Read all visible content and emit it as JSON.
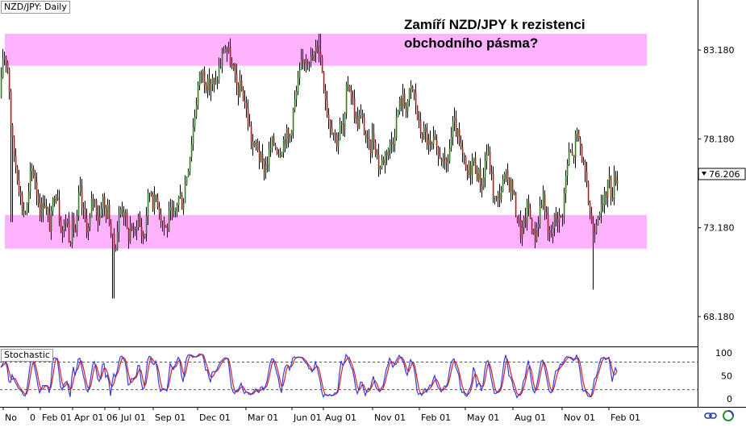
{
  "symbol_label": "NZD/JPY: Daily",
  "headline": "Zamíří NZD/JPY k rezistenci obchodního pásma?",
  "indicator_label": "Stochastic",
  "current_price": "76.206",
  "colors": {
    "bull_candle": "#1a8a1a",
    "bear_candle": "#c0141a",
    "wick": "#000000",
    "zone": "#ff80ff",
    "stoch_main": "#3b3bd6",
    "stoch_signal": "#d21e2a",
    "level_upper": "#3b3bd6",
    "level_lower": "#d21e2a"
  },
  "icons": [
    "link-icon",
    "chart-logo-icon"
  ],
  "chart_data": [
    {
      "type": "candlestick",
      "title": "NZD/JPY: Daily",
      "ylim": [
        66.5,
        86.0
      ],
      "y_ticks": [
        "83.180",
        "78.180",
        "73.180",
        "68.180"
      ],
      "x_ticks": [
        "No",
        "0",
        "Feb 01",
        "Apr 01",
        "06",
        "Jul 01",
        "Sep 01",
        "Dec 01",
        "Mar 01",
        "Jun 01",
        "Aug 01",
        "Nov 01",
        "Feb 01",
        "May 01",
        "Aug 01",
        "Nov 01",
        "Feb 01"
      ],
      "grid": false,
      "last_price": 76.206,
      "zones": [
        {
          "name": "resistance",
          "from": 82.3,
          "to": 84.1
        },
        {
          "name": "support",
          "from": 72.0,
          "to": 73.9
        }
      ],
      "close_path": [
        [
          0,
          80.5
        ],
        [
          3,
          82.8
        ],
        [
          6,
          83.0
        ],
        [
          10,
          82.0
        ],
        [
          14,
          78.2
        ],
        [
          18,
          77.0
        ],
        [
          22,
          76.0
        ],
        [
          26,
          74.5
        ],
        [
          30,
          74.0
        ],
        [
          34,
          74.5
        ],
        [
          38,
          76.5
        ],
        [
          42,
          76.2
        ],
        [
          46,
          75.0
        ],
        [
          50,
          74.0
        ],
        [
          54,
          75.0
        ],
        [
          58,
          73.8
        ],
        [
          62,
          73.2
        ],
        [
          66,
          75.0
        ],
        [
          70,
          75.5
        ],
        [
          74,
          73.5
        ],
        [
          78,
          73.0
        ],
        [
          82,
          73.8
        ],
        [
          86,
          72.5
        ],
        [
          90,
          73.5
        ],
        [
          94,
          72.8
        ],
        [
          98,
          75.5
        ],
        [
          102,
          74.0
        ],
        [
          106,
          73.5
        ],
        [
          110,
          73.0
        ],
        [
          114,
          75.0
        ],
        [
          118,
          74.5
        ],
        [
          122,
          73.5
        ],
        [
          126,
          75.0
        ],
        [
          130,
          74.0
        ],
        [
          134,
          74.2
        ],
        [
          138,
          72.5
        ],
        [
          142,
          72.0
        ],
        [
          146,
          73.5
        ],
        [
          150,
          74.5
        ],
        [
          154,
          74.0
        ],
        [
          158,
          72.5
        ],
        [
          162,
          73.5
        ],
        [
          166,
          72.5
        ],
        [
          170,
          74.0
        ],
        [
          174,
          73.0
        ],
        [
          178,
          72.5
        ],
        [
          182,
          74.5
        ],
        [
          186,
          75.5
        ],
        [
          190,
          74.5
        ],
        [
          194,
          75.0
        ],
        [
          198,
          74.0
        ],
        [
          202,
          73.5
        ],
        [
          206,
          73.0
        ],
        [
          210,
          74.0
        ],
        [
          214,
          73.5
        ],
        [
          218,
          74.5
        ],
        [
          222,
          75.0
        ],
        [
          226,
          74.5
        ],
        [
          230,
          76.0
        ],
        [
          234,
          77.0
        ],
        [
          238,
          78.5
        ],
        [
          242,
          80.0
        ],
        [
          246,
          81.5
        ],
        [
          250,
          82.0
        ],
        [
          254,
          81.5
        ],
        [
          258,
          81.0
        ],
        [
          262,
          81.5
        ],
        [
          266,
          81.0
        ],
        [
          270,
          82.0
        ],
        [
          274,
          82.5
        ],
        [
          278,
          83.5
        ],
        [
          282,
          83.0
        ],
        [
          286,
          82.5
        ],
        [
          290,
          81.5
        ],
        [
          294,
          81.0
        ],
        [
          298,
          81.0
        ],
        [
          302,
          80.5
        ],
        [
          306,
          79.5
        ],
        [
          310,
          78.5
        ],
        [
          314,
          77.5
        ],
        [
          318,
          78.0
        ],
        [
          322,
          77.0
        ],
        [
          326,
          76.5
        ],
        [
          330,
          76.8
        ],
        [
          334,
          77.5
        ],
        [
          338,
          78.0
        ],
        [
          342,
          77.8
        ],
        [
          346,
          77.5
        ],
        [
          350,
          78.0
        ],
        [
          354,
          78.5
        ],
        [
          358,
          78.0
        ],
        [
          362,
          79.5
        ],
        [
          366,
          80.5
        ],
        [
          370,
          81.5
        ],
        [
          374,
          82.5
        ],
        [
          378,
          82.8
        ],
        [
          382,
          83.0
        ],
        [
          386,
          82.5
        ],
        [
          390,
          83.0
        ],
        [
          394,
          83.5
        ],
        [
          398,
          82.5
        ],
        [
          402,
          81.0
        ],
        [
          406,
          79.5
        ],
        [
          410,
          79.0
        ],
        [
          414,
          78.5
        ],
        [
          418,
          78.0
        ],
        [
          422,
          79.0
        ],
        [
          426,
          78.5
        ],
        [
          430,
          81.5
        ],
        [
          434,
          81.0
        ],
        [
          438,
          80.0
        ],
        [
          442,
          79.0
        ],
        [
          446,
          79.5
        ],
        [
          450,
          79.0
        ],
        [
          454,
          78.0
        ],
        [
          458,
          77.5
        ],
        [
          462,
          78.5
        ],
        [
          466,
          77.5
        ],
        [
          470,
          76.5
        ],
        [
          474,
          77.0
        ],
        [
          478,
          77.5
        ],
        [
          482,
          77.8
        ],
        [
          486,
          78.0
        ],
        [
          490,
          79.0
        ],
        [
          494,
          80.0
        ],
        [
          498,
          80.5
        ],
        [
          502,
          80.0
        ],
        [
          506,
          80.5
        ],
        [
          510,
          81.0
        ],
        [
          514,
          80.5
        ],
        [
          518,
          79.0
        ],
        [
          522,
          78.5
        ],
        [
          526,
          78.5
        ],
        [
          530,
          78.0
        ],
        [
          534,
          77.5
        ],
        [
          538,
          78.0
        ],
        [
          542,
          77.0
        ],
        [
          546,
          77.5
        ],
        [
          550,
          76.5
        ],
        [
          554,
          76.8
        ],
        [
          558,
          78.0
        ],
        [
          562,
          79.0
        ],
        [
          566,
          78.5
        ],
        [
          570,
          77.5
        ],
        [
          574,
          77.0
        ],
        [
          578,
          76.0
        ],
        [
          582,
          76.5
        ],
        [
          586,
          77.0
        ],
        [
          590,
          76.5
        ],
        [
          594,
          76.0
        ],
        [
          598,
          75.5
        ],
        [
          602,
          77.5
        ],
        [
          606,
          77.0
        ],
        [
          610,
          75.5
        ],
        [
          614,
          74.5
        ],
        [
          618,
          75.0
        ],
        [
          622,
          75.5
        ],
        [
          626,
          76.0
        ],
        [
          630,
          75.8
        ],
        [
          634,
          75.5
        ],
        [
          638,
          74.5
        ],
        [
          642,
          73.5
        ],
        [
          646,
          72.8
        ],
        [
          650,
          73.5
        ],
        [
          654,
          74.5
        ],
        [
          658,
          73.5
        ],
        [
          662,
          72.5
        ],
        [
          666,
          73.5
        ],
        [
          670,
          74.5
        ],
        [
          674,
          75.0
        ],
        [
          678,
          73.0
        ],
        [
          682,
          72.5
        ],
        [
          686,
          73.5
        ],
        [
          690,
          74.0
        ],
        [
          694,
          73.5
        ],
        [
          698,
          74.5
        ],
        [
          702,
          76.5
        ],
        [
          706,
          77.5
        ],
        [
          710,
          77.0
        ],
        [
          714,
          78.5
        ],
        [
          718,
          78.0
        ],
        [
          722,
          77.0
        ],
        [
          726,
          75.5
        ],
        [
          730,
          74.5
        ],
        [
          734,
          73.0
        ],
        [
          738,
          73.5
        ],
        [
          742,
          74.5
        ],
        [
          746,
          74.0
        ],
        [
          750,
          75.0
        ],
        [
          754,
          76.0
        ],
        [
          758,
          75.0
        ],
        [
          762,
          76.0
        ],
        [
          765,
          76.2
        ]
      ],
      "spikes": [
        [
          140,
          69.2
        ],
        [
          735,
          69.7
        ],
        [
          14,
          73.5
        ],
        [
          52,
          73.5
        ],
        [
          396,
          84.1
        ]
      ]
    },
    {
      "type": "line",
      "title": "Stochastic",
      "ylim": [
        0,
        100
      ],
      "y_ticks": [
        "100",
        "50",
        "0"
      ],
      "levels": [
        80,
        20
      ],
      "series": [
        {
          "color": "#3b3bd6"
        },
        {
          "color": "#d21e2a"
        }
      ]
    }
  ]
}
